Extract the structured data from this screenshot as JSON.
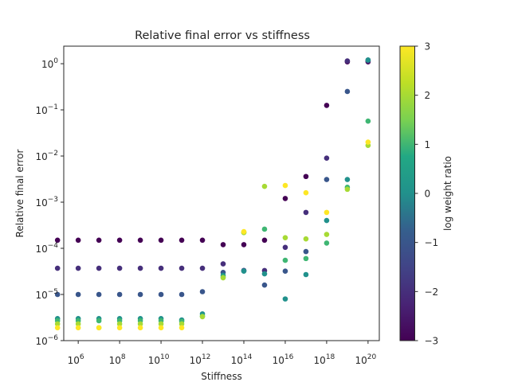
{
  "chart_data": {
    "type": "scatter",
    "title": "Relative final error vs stiffness",
    "xlabel": "Stiffness",
    "ylabel": "Relative final error",
    "xscale": "log",
    "yscale": "log",
    "xlim": [
      200000,
      3.5e+20
    ],
    "ylim": [
      1e-06,
      2.4
    ],
    "x_ticks": [
      {
        "base": "10",
        "exp": "6",
        "value": 1000000.0
      },
      {
        "base": "10",
        "exp": "8",
        "value": 100000000.0
      },
      {
        "base": "10",
        "exp": "10",
        "value": 10000000000.0
      },
      {
        "base": "10",
        "exp": "12",
        "value": 1000000000000.0
      },
      {
        "base": "10",
        "exp": "14",
        "value": 100000000000000.0
      },
      {
        "base": "10",
        "exp": "16",
        "value": 1e+16
      },
      {
        "base": "10",
        "exp": "18",
        "value": 1e+18
      },
      {
        "base": "10",
        "exp": "20",
        "value": 1e+20
      }
    ],
    "y_ticks": [
      {
        "base": "10",
        "exp": "−6",
        "value": 1e-06
      },
      {
        "base": "10",
        "exp": "−5",
        "value": 1e-05
      },
      {
        "base": "10",
        "exp": "−4",
        "value": 0.0001
      },
      {
        "base": "10",
        "exp": "−3",
        "value": 0.001
      },
      {
        "base": "10",
        "exp": "−2",
        "value": 0.01
      },
      {
        "base": "10",
        "exp": "−1",
        "value": 0.1
      },
      {
        "base": "10",
        "exp": "0",
        "value": 1
      }
    ],
    "colorbar": {
      "label": "log weight ratio",
      "min": -3,
      "max": 3,
      "ticks": [
        "−3",
        "−2",
        "−1",
        "0",
        "1",
        "2",
        "3"
      ],
      "tick_values": [
        -3,
        -2,
        -1,
        0,
        1,
        2,
        3
      ],
      "colormap": "viridis"
    },
    "series": [
      {
        "c": -3,
        "x": [
          100000.0,
          1000000.0,
          10000000.0,
          100000000.0,
          1000000000.0,
          10000000000.0,
          100000000000.0,
          1000000000000.0,
          10000000000000.0,
          100000000000000.0,
          1000000000000000.0,
          1e+16,
          1e+17,
          1e+18,
          1e+19,
          1e+20
        ],
        "y": [
          0.00015,
          0.00015,
          0.00015,
          0.00015,
          0.00015,
          0.00015,
          0.00015,
          0.00015,
          0.00012,
          0.00012,
          0.00015,
          0.0012,
          0.0036,
          0.125,
          1.1,
          1.1
        ]
      },
      {
        "c": -2,
        "x": [
          100000.0,
          1000000.0,
          10000000.0,
          100000000.0,
          1000000000.0,
          10000000000.0,
          100000000000.0,
          1000000000000.0,
          10000000000000.0,
          100000000000000.0,
          1000000000000000.0,
          1e+16,
          1e+17,
          1e+18,
          1e+19,
          1e+20
        ],
        "y": [
          3.7e-05,
          3.7e-05,
          3.7e-05,
          3.7e-05,
          3.7e-05,
          3.7e-05,
          3.7e-05,
          3.7e-05,
          4.6e-05,
          3.3e-05,
          3.3e-05,
          0.000105,
          0.0006,
          0.009,
          1.15,
          1.15
        ]
      },
      {
        "c": -1,
        "x": [
          100000.0,
          1000000.0,
          10000000.0,
          100000000.0,
          1000000000.0,
          10000000000.0,
          100000000000.0,
          1000000000000.0,
          10000000000000.0,
          100000000000000.0,
          1000000000000000.0,
          1e+16,
          1e+17,
          1e+18,
          1e+19,
          1e+20
        ],
        "y": [
          1e-05,
          1e-05,
          1e-05,
          1e-05,
          1e-05,
          1e-05,
          1e-05,
          1.15e-05,
          3e-05,
          3.3e-05,
          1.6e-05,
          3.2e-05,
          8.5e-05,
          0.0031,
          0.25,
          1.2
        ]
      },
      {
        "c": 0,
        "x": [
          100000.0,
          1000000.0,
          10000000.0,
          100000000.0,
          1000000000.0,
          10000000000.0,
          100000000000.0,
          1000000000000.0,
          10000000000000.0,
          100000000000000.0,
          1000000000000000.0,
          1e+16,
          1e+17,
          1e+18,
          1e+19,
          1e+20
        ],
        "y": [
          3e-06,
          3e-06,
          3e-06,
          3e-06,
          3e-06,
          3e-06,
          2.8e-06,
          3.8e-06,
          2.6e-05,
          3.2e-05,
          2.8e-05,
          8e-06,
          2.7e-05,
          0.0004,
          0.0031,
          1.2
        ]
      },
      {
        "c": 1,
        "x": [
          100000.0,
          1000000.0,
          10000000.0,
          100000000.0,
          1000000000.0,
          10000000000.0,
          100000000000.0,
          1000000000000.0,
          10000000000000.0,
          100000000000000.0,
          1000000000000000.0,
          1e+16,
          1e+17,
          1e+18,
          1e+19,
          1e+20
        ],
        "y": [
          2.7e-06,
          2.7e-06,
          2.7e-06,
          2.7e-06,
          2.7e-06,
          2.7e-06,
          2.6e-06,
          3.4e-06,
          2.4e-05,
          0.00022,
          0.00026,
          5.5e-05,
          6e-05,
          0.00013,
          0.0021,
          0.057
        ]
      },
      {
        "c": 2,
        "x": [
          100000.0,
          1000000.0,
          10000000.0,
          100000000.0,
          1000000000.0,
          10000000000.0,
          100000000000.0,
          1000000000000.0,
          10000000000000.0,
          100000000000000.0,
          1000000000000000.0,
          1e+16,
          1e+17,
          1e+18,
          1e+19,
          1e+20
        ],
        "y": [
          2.3e-06,
          2.3e-06,
          1.9e-06,
          2.3e-06,
          2.3e-06,
          2.3e-06,
          2.3e-06,
          3.3e-06,
          2.3e-05,
          0.00022,
          0.0022,
          0.00017,
          0.00016,
          0.0002,
          0.0019,
          0.017
        ]
      },
      {
        "c": 3,
        "x": [
          100000.0,
          1000000.0,
          10000000.0,
          100000000.0,
          1000000000.0,
          10000000000.0,
          100000000000.0,
          100000000000000.0,
          1e+16,
          1e+17,
          1e+18,
          1e+20
        ],
        "y": [
          1.9e-06,
          1.9e-06,
          1.9e-06,
          1.9e-06,
          1.9e-06,
          1.9e-06,
          1.9e-06,
          0.00023,
          0.0023,
          0.0016,
          0.0006,
          0.02
        ]
      }
    ]
  }
}
